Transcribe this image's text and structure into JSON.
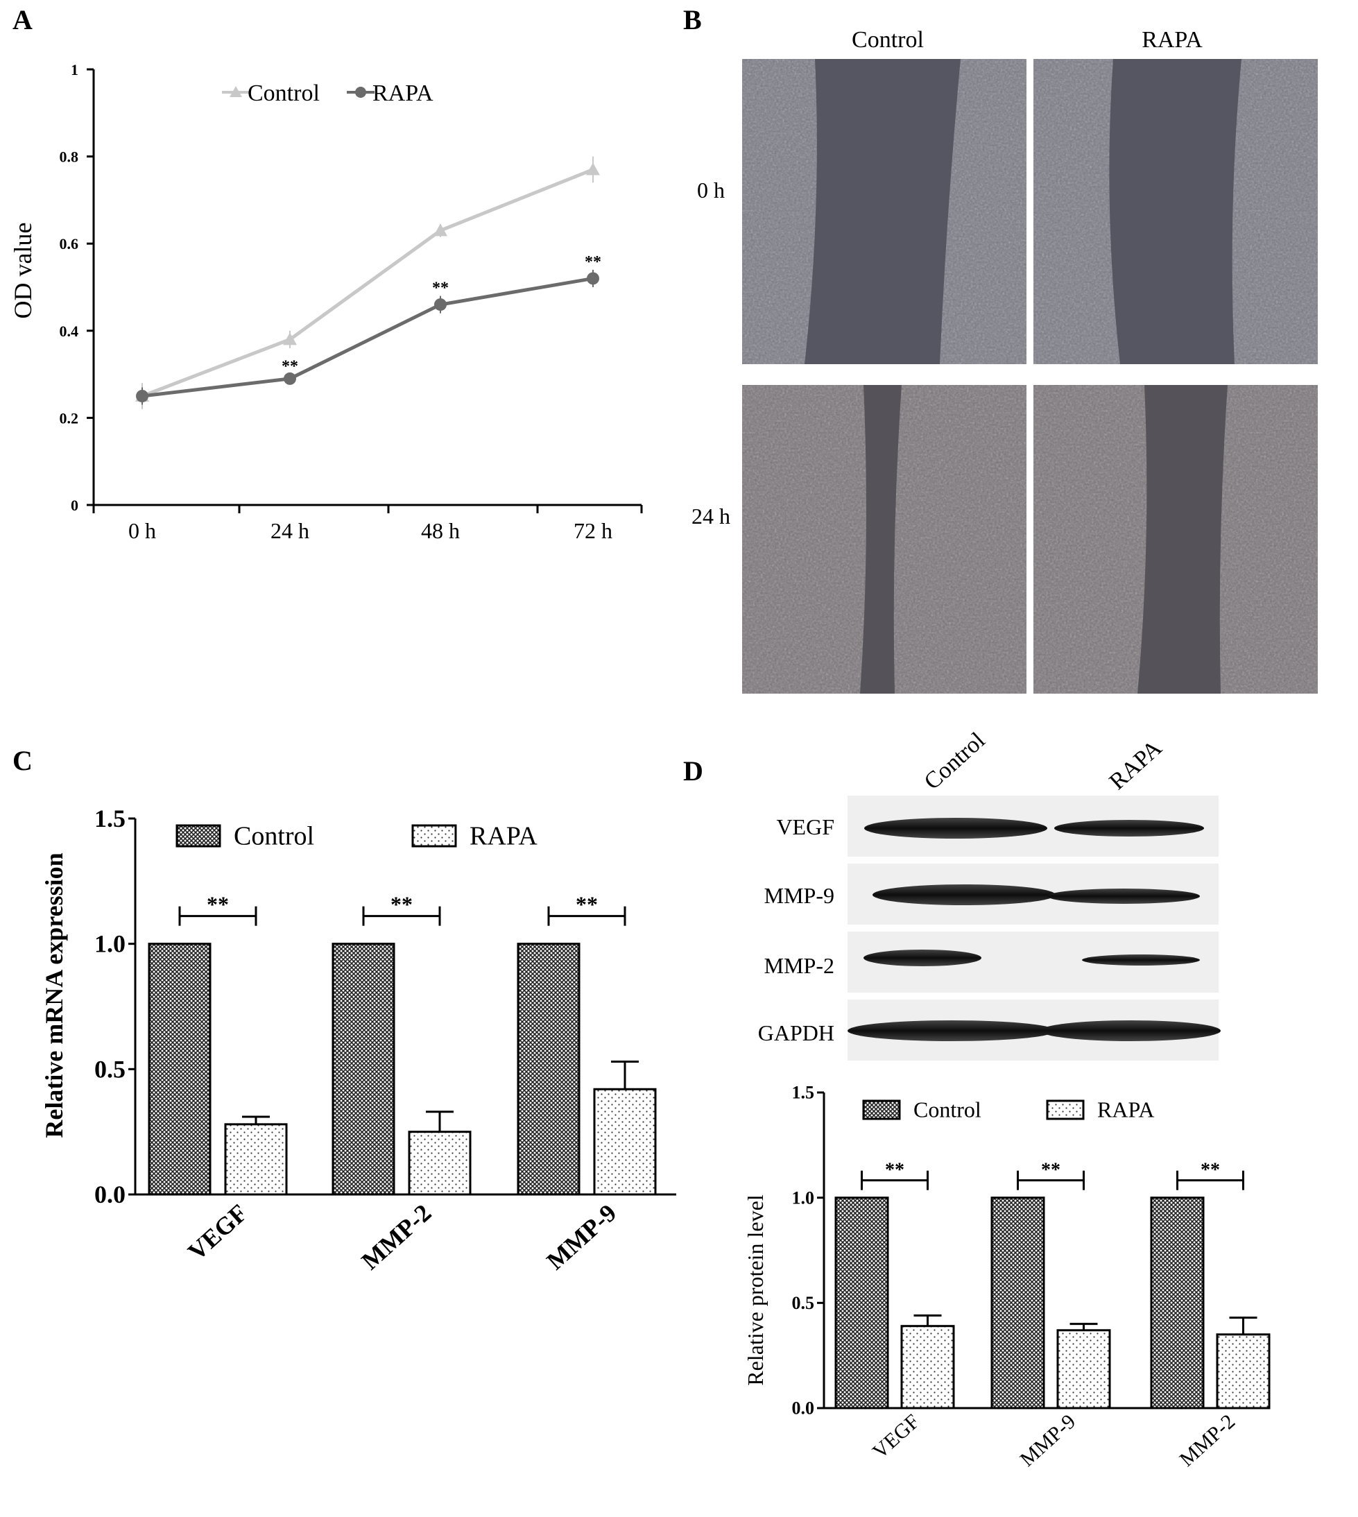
{
  "colors": {
    "control_line": "#c8c8c8",
    "rapa_line": "#6b6b6b",
    "cell_bg": "#6e6e78",
    "gap_bg": "#4a4a55"
  },
  "panel_labels": {
    "a": "A",
    "b": "B",
    "c": "C",
    "d": "D"
  },
  "chart_data": [
    {
      "panel": "A",
      "type": "line",
      "ylabel": "OD value",
      "xlabel": "",
      "categories": [
        "0 h",
        "24 h",
        "48 h",
        "72 h"
      ],
      "ylim": [
        0,
        1
      ],
      "yticks": [
        "0",
        "0.2",
        "0.4",
        "0.6",
        "0.8",
        "1"
      ],
      "legend": "top",
      "series": [
        {
          "name": "Control",
          "marker": "triangle",
          "values": [
            0.25,
            0.38,
            0.63,
            0.77
          ],
          "errors": [
            0.03,
            0.02,
            0.015,
            0.03
          ]
        },
        {
          "name": "RAPA",
          "marker": "circle",
          "values": [
            0.25,
            0.29,
            0.46,
            0.52
          ],
          "errors": [
            0.02,
            0.01,
            0.02,
            0.02
          ]
        }
      ],
      "significance": [
        {
          "category_index": 1,
          "text": "**"
        },
        {
          "category_index": 2,
          "text": "**"
        },
        {
          "category_index": 3,
          "text": "**"
        }
      ]
    },
    {
      "panel": "C",
      "type": "bar",
      "ylabel": "Relative mRNA expression",
      "xlabel": "",
      "categories": [
        "VEGF",
        "MMP-2",
        "MMP-9"
      ],
      "ylim": [
        0,
        1.5
      ],
      "yticks": [
        "0.0",
        "0.5",
        "1.0",
        "1.5"
      ],
      "legend": "top",
      "series": [
        {
          "name": "Control",
          "pattern": "crosshatch",
          "values": [
            1.0,
            1.0,
            1.0
          ],
          "errors": [
            0,
            0,
            0
          ]
        },
        {
          "name": "RAPA",
          "pattern": "dots",
          "values": [
            0.28,
            0.25,
            0.42
          ],
          "errors": [
            0.03,
            0.08,
            0.11
          ]
        }
      ],
      "significance": [
        {
          "text": "**"
        },
        {
          "text": "**"
        },
        {
          "text": "**"
        }
      ]
    },
    {
      "panel": "D",
      "type": "bar",
      "ylabel": "Relative protein level",
      "xlabel": "",
      "categories": [
        "VEGF",
        "MMP-9",
        "MMP-2"
      ],
      "ylim": [
        0,
        1.5
      ],
      "yticks": [
        "0.0",
        "0.5",
        "1.0",
        "1.5"
      ],
      "legend": "top",
      "series": [
        {
          "name": "Control",
          "pattern": "crosshatch",
          "values": [
            1.0,
            1.0,
            1.0
          ],
          "errors": [
            0,
            0,
            0
          ]
        },
        {
          "name": "RAPA",
          "pattern": "dots",
          "values": [
            0.39,
            0.37,
            0.35
          ],
          "errors": [
            0.05,
            0.03,
            0.08
          ]
        }
      ],
      "significance": [
        {
          "text": "**"
        },
        {
          "text": "**"
        },
        {
          "text": "**"
        }
      ]
    }
  ],
  "panel_b": {
    "columns": [
      "Control",
      "RAPA"
    ],
    "rows": [
      "0 h",
      "24 h"
    ]
  },
  "panel_d_blot": {
    "lanes": [
      "Control",
      "RAPA"
    ],
    "bands": [
      "VEGF",
      "MMP-9",
      "MMP-2",
      "GAPDH"
    ]
  }
}
